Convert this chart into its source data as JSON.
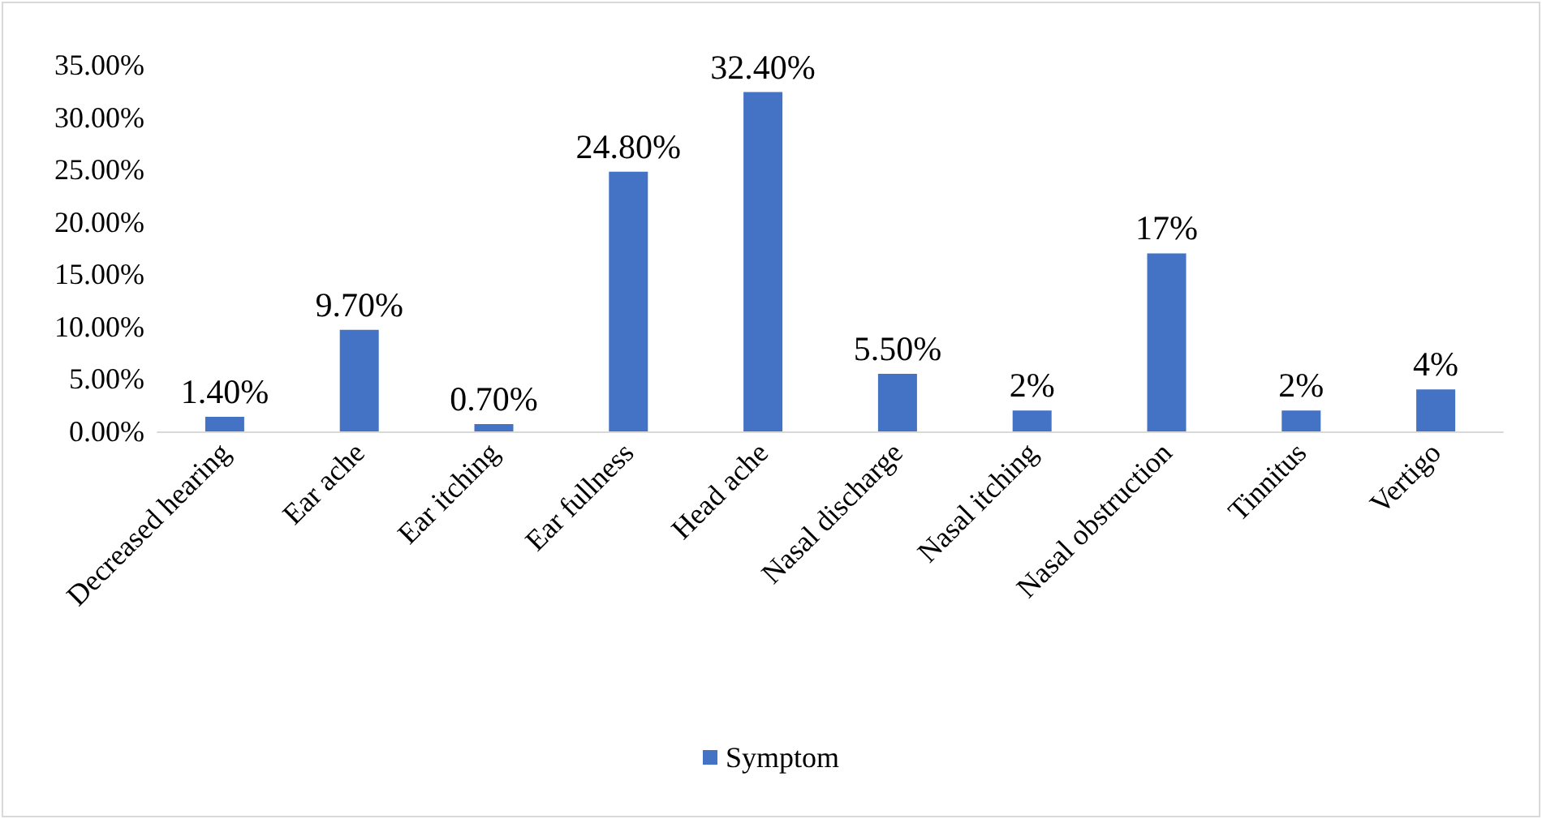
{
  "chart_data": {
    "type": "bar",
    "categories": [
      "Decreased hearing",
      "Ear ache",
      "Ear itching",
      "Ear fullness",
      "Head ache",
      "Nasal discharge",
      "Nasal itching",
      "Nasal obstruction",
      "Tinnitus",
      "Vertigo"
    ],
    "series": [
      {
        "name": "Symptom",
        "color": "#4472c4",
        "values": [
          1.4,
          9.7,
          0.7,
          24.8,
          32.4,
          5.5,
          2,
          17,
          2,
          4
        ],
        "value_labels": [
          "1.40%",
          "9.70%",
          "0.70%",
          "24.80%",
          "32.40%",
          "5.50%",
          "2%",
          "17%",
          "2%",
          "4%"
        ]
      }
    ],
    "ylim": [
      0,
      35
    ],
    "yticks": [
      {
        "value": 0,
        "label": "0.00%"
      },
      {
        "value": 5,
        "label": "5.00%"
      },
      {
        "value": 10,
        "label": "10.00%"
      },
      {
        "value": 15,
        "label": "15.00%"
      },
      {
        "value": 20,
        "label": "20.00%"
      },
      {
        "value": 25,
        "label": "25.00%"
      },
      {
        "value": 30,
        "label": "30.00%"
      },
      {
        "value": 35,
        "label": "35.00%"
      }
    ],
    "grid": false,
    "legend": "bottom"
  }
}
